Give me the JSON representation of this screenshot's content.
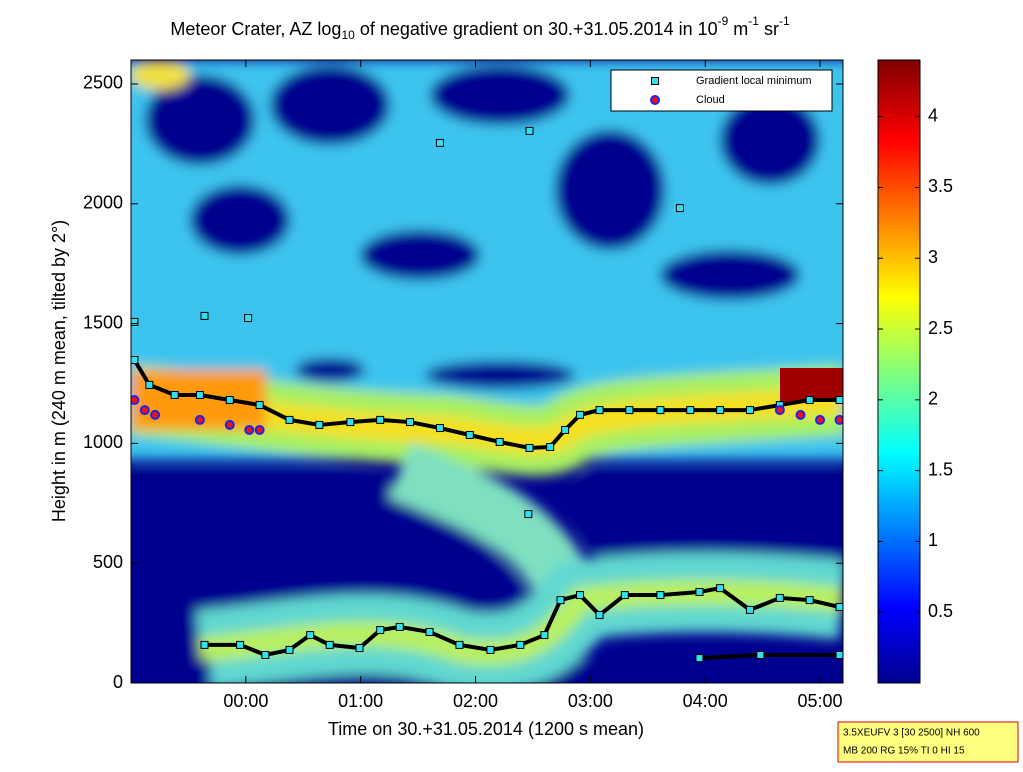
{
  "chart_data": {
    "type": "scatter",
    "title": [
      "Meteor Crater, AZ log",
      "10",
      " of negative gradient on 30.+31.05.2014 in 10",
      "-9",
      " m",
      "-1",
      " sr",
      "-1"
    ],
    "x_label": "Time on 30.+31.05.2014 (1200 s mean)",
    "y_label": "Height in m (240 m mean, tilted by 2°)",
    "xlim": [
      -1.0,
      5.2
    ],
    "xticks": [
      {
        "value": 0,
        "label": "00:00"
      },
      {
        "value": 1,
        "label": "01:00"
      },
      {
        "value": 2,
        "label": "02:00"
      },
      {
        "value": 3,
        "label": "03:00"
      },
      {
        "value": 4,
        "label": "04:00"
      },
      {
        "value": 5,
        "label": "05:00"
      }
    ],
    "ylim": [
      0,
      2600
    ],
    "yticks": [
      0,
      500,
      1000,
      1500,
      2000,
      2500
    ],
    "clim": [
      0,
      4.4
    ],
    "cticks": [
      0.5,
      1,
      1.5,
      2,
      2.5,
      3,
      3.5,
      4
    ],
    "legend": "upper right",
    "series": [
      {
        "name": "Gradient local minimum",
        "color": "#33e0f0",
        "edge_color": "#000000",
        "marker": "square",
        "x": [
          -0.97,
          -0.84,
          -0.62,
          -0.4,
          -0.14,
          0.12,
          0.38,
          0.64,
          0.91,
          1.17,
          1.43,
          1.69,
          1.95,
          2.21,
          2.47,
          2.65,
          2.78,
          2.91,
          3.08,
          3.34,
          3.61,
          3.87,
          4.13,
          4.39,
          4.65,
          4.91,
          5.17,
          null,
          -0.36,
          -0.05,
          0.17,
          0.38,
          0.56,
          0.73,
          0.99,
          1.17,
          1.34,
          1.6,
          1.86,
          2.13,
          2.39,
          2.6,
          2.74,
          2.91,
          3.08,
          3.3,
          3.61,
          3.95,
          4.13,
          4.39,
          4.65,
          4.91,
          5.17,
          null,
          3.95,
          4.48,
          5.17,
          null,
          1.69,
          null,
          2.47,
          null,
          3.78,
          null,
          -0.97,
          null,
          -0.36,
          null,
          0.02,
          null,
          2.46
        ],
        "y": [
          1348,
          1244,
          1202,
          1202,
          1181,
          1160,
          1098,
          1077,
          1089,
          1098,
          1089,
          1064,
          1035,
          1006,
          981,
          985,
          1056,
          1119,
          1139,
          1139,
          1139,
          1139,
          1139,
          1139,
          1160,
          1181,
          1181,
          null,
          159,
          159,
          117,
          138,
          200,
          159,
          146,
          221,
          234,
          213,
          159,
          138,
          159,
          200,
          346,
          367,
          284,
          367,
          367,
          380,
          396,
          305,
          355,
          346,
          317,
          null,
          104,
          117,
          117,
          null,
          2254,
          null,
          2304,
          null,
          1982,
          null,
          1507,
          null,
          1532,
          null,
          1523,
          null,
          705
        ]
      },
      {
        "name": "Cloud",
        "color": "#ee1111",
        "edge_color": "#2222ee",
        "marker": "circle",
        "x": [
          -0.97,
          -0.88,
          -0.79,
          -0.4,
          -0.14,
          0.03,
          0.12,
          4.65,
          4.83,
          5.0,
          5.17
        ],
        "y": [
          1181,
          1139,
          1119,
          1098,
          1077,
          1056,
          1056,
          1139,
          1119,
          1098,
          1098
        ]
      }
    ],
    "info": [
      "3.5XEUFV 3 [30 2500] NH 600",
      "MB 200 RG 15% TI 0 HI 15"
    ]
  }
}
